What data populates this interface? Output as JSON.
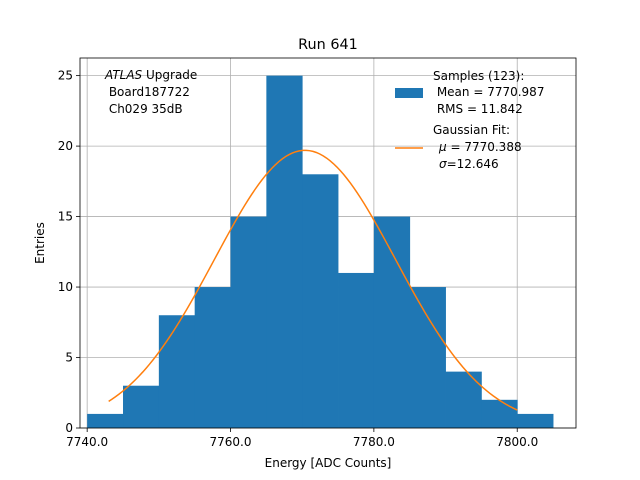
{
  "chart_data": {
    "type": "bar",
    "title": "Run 641",
    "xlabel": "Energy [ADC Counts]",
    "ylabel": "Entries",
    "xlim": [
      7739.0,
      7808.2
    ],
    "ylim": [
      0,
      26.25
    ],
    "grid": true,
    "x_ticks": [
      7740.0,
      7760.0,
      7780.0,
      7800.0
    ],
    "x_tick_labels": [
      "7740.0",
      "7760.0",
      "7780.0",
      "7800.0"
    ],
    "y_ticks": [
      0,
      5,
      10,
      15,
      20,
      25
    ],
    "y_tick_labels": [
      "0",
      "5",
      "10",
      "15",
      "20",
      "25"
    ],
    "histogram": {
      "name": "Samples (123):",
      "color": "#1f77b4",
      "bin_edges": [
        7740,
        7745,
        7750,
        7755,
        7760,
        7765,
        7770,
        7775,
        7780,
        7785,
        7790,
        7795,
        7800,
        7805
      ],
      "counts": [
        1,
        3,
        8,
        10,
        15,
        25,
        18,
        11,
        15,
        10,
        4,
        2,
        1
      ]
    },
    "fit": {
      "name": "Gaussian Fit:",
      "color": "#ff7f0e",
      "mu": 7770.388,
      "sigma": 12.646,
      "peak": 19.7,
      "x_range": [
        7743,
        7800
      ]
    },
    "annotation": {
      "italic_part": "ATLAS",
      "rest": " Upgrade",
      "line2": " Board187722",
      "line3": " Ch029 35dB"
    },
    "legend": {
      "position": "top-right",
      "hist_line1": "Samples (123):",
      "hist_line2": " Mean = 7770.987",
      "hist_line3": " RMS = 11.842",
      "fit_line1": "Gaussian Fit:",
      "fit_line2_sym": "μ",
      "fit_line2_rest": " = 7770.388",
      "fit_line3_sym": "σ",
      "fit_line3_rest": "=12.646"
    }
  }
}
